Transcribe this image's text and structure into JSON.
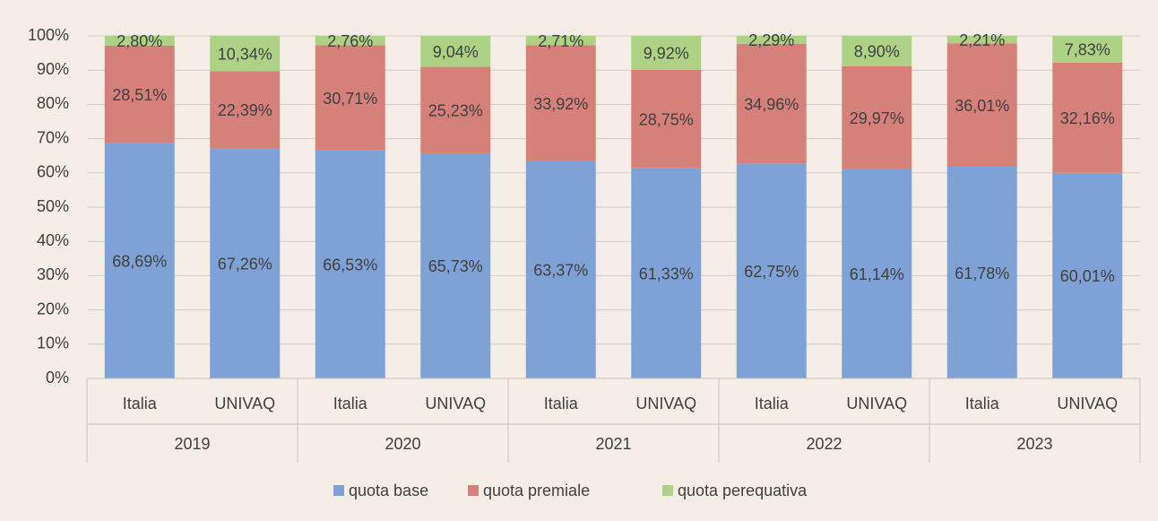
{
  "chart_data": {
    "type": "stacked_bar",
    "categories": [
      "Italia",
      "UNIVAQ",
      "Italia",
      "UNIVAQ",
      "Italia",
      "UNIVAQ",
      "Italia",
      "UNIVAQ",
      "Italia",
      "UNIVAQ"
    ],
    "category_groups": [
      "2019",
      "2020",
      "2021",
      "2022",
      "2023"
    ],
    "series": [
      {
        "name": "quota base",
        "color": "#7ea2d6",
        "values": [
          68.69,
          67.26,
          66.53,
          65.73,
          63.37,
          61.33,
          62.75,
          61.14,
          61.78,
          60.01
        ],
        "value_labels": [
          "68,69%",
          "67,26%",
          "66,53%",
          "65,73%",
          "63,37%",
          "61,33%",
          "62,75%",
          "61,14%",
          "61,78%",
          "60,01%"
        ]
      },
      {
        "name": "quota premiale",
        "color": "#d5817a",
        "values": [
          28.51,
          22.39,
          30.71,
          25.23,
          33.92,
          28.75,
          34.96,
          29.97,
          36.01,
          32.16
        ],
        "value_labels": [
          "28,51%",
          "22,39%",
          "30,71%",
          "25,23%",
          "33,92%",
          "28,75%",
          "34,96%",
          "29,97%",
          "36,01%",
          "32,16%"
        ]
      },
      {
        "name": "quota perequativa",
        "color": "#add285",
        "values": [
          2.8,
          10.34,
          2.76,
          9.04,
          2.71,
          9.92,
          2.29,
          8.9,
          2.21,
          7.83
        ],
        "value_labels": [
          "2,80%",
          "10,34%",
          "2,76%",
          "9,04%",
          "2,71%",
          "9,92%",
          "2,29%",
          "8,90%",
          "2,21%",
          "7,83%"
        ]
      }
    ],
    "ylim": [
      0,
      100
    ],
    "yticks": [
      {
        "value": 0,
        "label": "0%"
      },
      {
        "value": 10,
        "label": "10%"
      },
      {
        "value": 20,
        "label": "20%"
      },
      {
        "value": 30,
        "label": "30%"
      },
      {
        "value": 40,
        "label": "40%"
      },
      {
        "value": 50,
        "label": "50%"
      },
      {
        "value": 60,
        "label": "60%"
      },
      {
        "value": 70,
        "label": "70%"
      },
      {
        "value": 80,
        "label": "80%"
      },
      {
        "value": 90,
        "label": "90%"
      },
      {
        "value": 100,
        "label": "100%"
      }
    ],
    "grid": true,
    "legend": "bottom"
  }
}
